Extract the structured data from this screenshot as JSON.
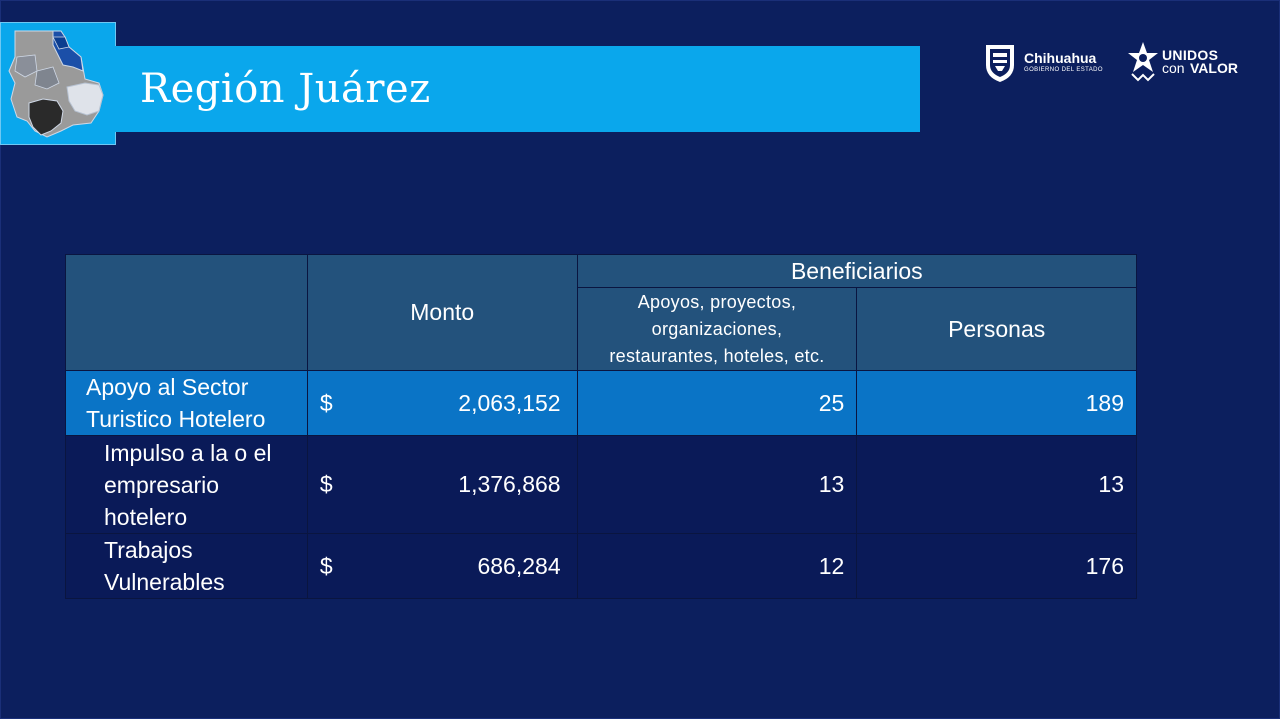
{
  "slide": {
    "title": "Región Juárez"
  },
  "logos": {
    "chihuahua": {
      "name": "Chihuahua",
      "subtitle": "GOBIERNO DEL ESTADO"
    },
    "unidos": {
      "line1": "UNIDOS",
      "con": "con",
      "valor": "VALOR"
    }
  },
  "colors": {
    "background": "#0c1f5e",
    "title_bar": "#0aa7ec",
    "header_cells": "#23527c",
    "highlight_row": "#0a74c6",
    "dark_rows": "#0a1a58"
  },
  "table": {
    "headers": {
      "monto": "Monto",
      "beneficiarios": "Beneficiarios",
      "apoyos": [
        "Apoyos, proyectos,",
        "organizaciones,",
        "restaurantes, hoteles,  etc."
      ],
      "personas": "Personas"
    },
    "rows": [
      {
        "label_lines": [
          "Apoyo al Sector",
          "Turistico Hotelero"
        ],
        "currency": "$",
        "monto": "2,063,152",
        "apoyos": "25",
        "personas": "189"
      },
      {
        "label_lines": [
          "Impulso a la o el",
          "empresario",
          "hotelero"
        ],
        "currency": "$",
        "monto": "1,376,868",
        "apoyos": "13",
        "personas": "13"
      },
      {
        "label_lines": [
          "Trabajos",
          "Vulnerables"
        ],
        "currency": "$",
        "monto": "686,284",
        "apoyos": "12",
        "personas": "176"
      }
    ]
  }
}
